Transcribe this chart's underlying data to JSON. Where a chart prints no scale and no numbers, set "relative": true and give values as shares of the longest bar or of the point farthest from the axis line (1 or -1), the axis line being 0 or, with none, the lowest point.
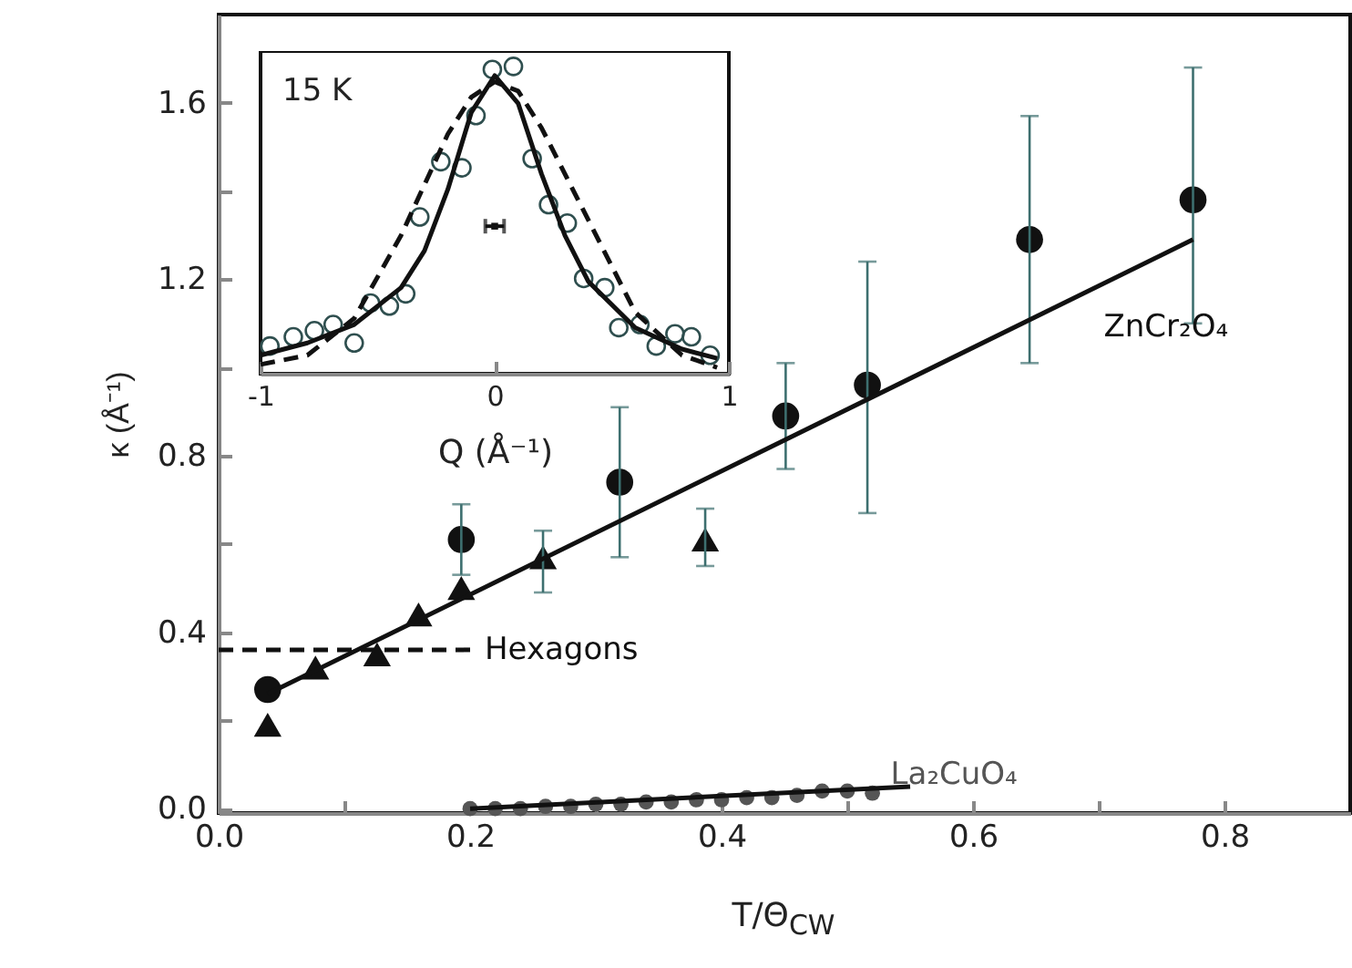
{
  "chart_data": [
    {
      "type": "scatter",
      "xlabel": "T/Θ$_{CW}$",
      "ylabel": "κ (Å⁻¹)",
      "xlim": [
        0,
        0.9
      ],
      "ylim": [
        -0.01,
        1.8
      ],
      "xticks": [
        {
          "value": 0,
          "label": "0.0"
        },
        {
          "value": 0.1,
          "label": null
        },
        {
          "value": 0.2,
          "label": "0.2"
        },
        {
          "value": 0.3,
          "label": null
        },
        {
          "value": 0.4,
          "label": "0.4"
        },
        {
          "value": 0.5,
          "label": null
        },
        {
          "value": 0.6,
          "label": "0.6"
        },
        {
          "value": 0.7,
          "label": null
        },
        {
          "value": 0.8,
          "label": "0.8"
        }
      ],
      "yticks": [
        {
          "value": 0,
          "label": "0.0"
        },
        {
          "value": 0.2,
          "label": null
        },
        {
          "value": 0.4,
          "label": "0.4"
        },
        {
          "value": 0.6,
          "label": null
        },
        {
          "value": 0.8,
          "label": "0.8"
        },
        {
          "value": 1.0,
          "label": null
        },
        {
          "value": 1.2,
          "label": "1.2"
        },
        {
          "value": 1.4,
          "label": null
        },
        {
          "value": 1.6,
          "label": "1.6"
        }
      ],
      "series": [
        {
          "marker": "circle",
          "color": "#111111",
          "x": [
            0.039,
            0.193,
            0.319,
            0.451,
            0.516,
            0.645,
            0.775
          ],
          "values": [
            0.27,
            0.61,
            0.74,
            0.89,
            0.96,
            1.29,
            1.38
          ],
          "errors": [
            null,
            [
              0.53,
              0.69
            ],
            [
              0.57,
              0.91
            ],
            [
              0.77,
              1.01
            ],
            [
              0.67,
              1.24
            ],
            [
              1.01,
              1.57
            ],
            [
              1.1,
              1.68
            ]
          ]
        },
        {
          "marker": "triangle",
          "color": "#111111",
          "x": [
            0.039,
            0.077,
            0.126,
            0.159,
            0.193,
            0.258,
            0.387
          ],
          "values": [
            0.19,
            0.32,
            0.35,
            0.44,
            0.5,
            0.57,
            0.61
          ],
          "errors": [
            null,
            null,
            null,
            null,
            null,
            [
              0.49,
              0.63
            ],
            [
              0.55,
              0.68
            ]
          ]
        },
        {
          "name": "ZnCr₂O₄",
          "type": "line",
          "color": "#111111",
          "x": [
            0.039,
            0.775
          ],
          "values": [
            0.26,
            1.29
          ]
        },
        {
          "name": "Hexagons",
          "type": "line",
          "line_style": "dashed",
          "color": "#111111",
          "x": [
            0,
            0.2
          ],
          "values": [
            0.36,
            0.36
          ]
        },
        {
          "name": "La₂CuO₄",
          "marker": "circle",
          "color": "#555555",
          "x": [
            0.2,
            0.22,
            0.24,
            0.26,
            0.28,
            0.3,
            0.32,
            0.34,
            0.36,
            0.38,
            0.4,
            0.42,
            0.44,
            0.46,
            0.48,
            0.5,
            0.52
          ],
          "values": [
            0.0,
            0.0,
            0.0,
            0.005,
            0.005,
            0.01,
            0.01,
            0.015,
            0.015,
            0.02,
            0.02,
            0.025,
            0.025,
            0.03,
            0.04,
            0.04,
            0.035
          ]
        },
        {
          "type": "line",
          "color": "#111111",
          "x": [
            0.2,
            0.55
          ],
          "values": [
            0.0,
            0.05
          ]
        }
      ]
    },
    {
      "type": "line",
      "xlabel": "Q (Å⁻¹)",
      "relative": true,
      "xlim": [
        -1,
        1
      ],
      "xticks": [
        -1,
        0,
        1
      ],
      "annotations": [
        "15 K"
      ],
      "series": [
        {
          "type": "scatter",
          "marker": "circle",
          "color": "#2f4f4f",
          "x": [
            -0.96,
            -0.86,
            -0.77,
            -0.69,
            -0.6,
            -0.53,
            -0.45,
            -0.38,
            -0.32,
            -0.23,
            -0.14,
            -0.08,
            -0.01,
            0.08,
            0.16,
            0.23,
            0.31,
            0.38,
            0.47,
            0.53,
            0.62,
            0.69,
            0.77,
            0.84,
            0.92
          ],
          "values": [
            0.09,
            0.12,
            0.14,
            0.16,
            0.1,
            0.23,
            0.22,
            0.26,
            0.51,
            0.69,
            0.67,
            0.84,
            0.99,
            1.0,
            0.7,
            0.55,
            0.49,
            0.31,
            0.28,
            0.15,
            0.16,
            0.09,
            0.13,
            0.12,
            0.06
          ]
        },
        {
          "color": "#111111",
          "x": [
            -1,
            -0.8,
            -0.6,
            -0.4,
            -0.3,
            -0.2,
            -0.1,
            0,
            0.1,
            0.2,
            0.3,
            0.4,
            0.6,
            0.8,
            0.95
          ],
          "values": [
            0.06,
            0.1,
            0.16,
            0.28,
            0.4,
            0.6,
            0.85,
            0.97,
            0.88,
            0.65,
            0.45,
            0.3,
            0.15,
            0.08,
            0.05
          ]
        },
        {
          "line_style": "dashed",
          "color": "#111111",
          "x": [
            -1,
            -0.8,
            -0.6,
            -0.4,
            -0.2,
            -0.1,
            0,
            0.1,
            0.2,
            0.4,
            0.6,
            0.8,
            0.95
          ],
          "values": [
            0.03,
            0.06,
            0.18,
            0.45,
            0.78,
            0.9,
            0.95,
            0.92,
            0.8,
            0.5,
            0.2,
            0.06,
            0.02
          ]
        },
        {
          "type": "scatter",
          "marker": "square",
          "color": "#111111",
          "x": [
            0
          ],
          "values": [
            0.48
          ],
          "xerrors": [
            0.04
          ]
        }
      ]
    }
  ]
}
